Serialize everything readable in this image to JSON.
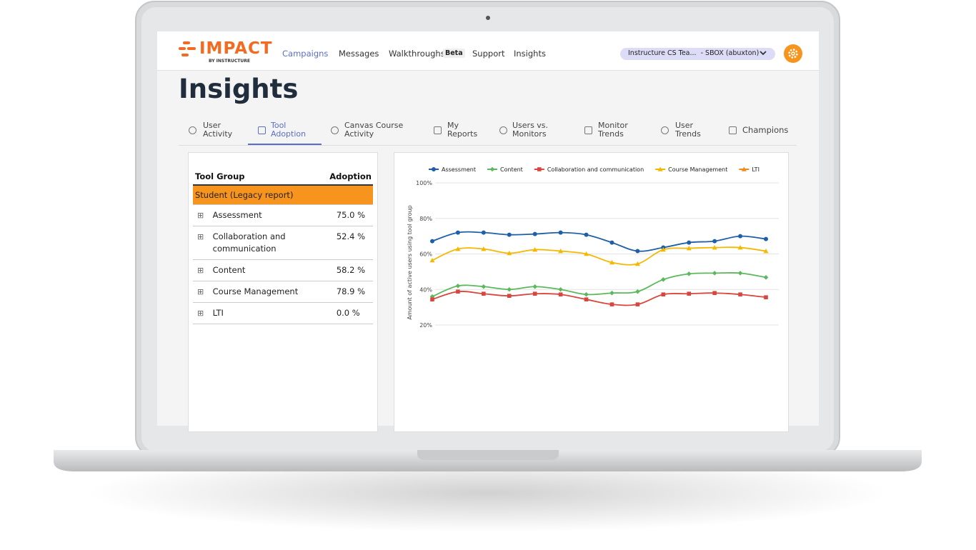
{
  "header": {
    "logo": "IMPACT",
    "logo_sub": "BY INSTRUCTURE",
    "nav": [
      "Campaigns",
      "Messages",
      "Walkthroughs",
      "Support",
      "Insights"
    ],
    "nav_badge": "Beta",
    "account": "Instructure CS Tea...  - SBOX (abuxton)"
  },
  "page_title": "Insights",
  "tabs": [
    "User Activity",
    "Tool Adoption",
    "Canvas Course Activity",
    "My Reports",
    "Users vs. Monitors",
    "Monitor Trends",
    "User Trends",
    "Champions"
  ],
  "table": {
    "columns": [
      "Tool Group",
      "Adoption"
    ],
    "group": "Student (Legacy report)",
    "rows": [
      [
        "Assessment",
        "75.0 %"
      ],
      [
        "Collaboration and communication",
        "52.4 %"
      ],
      [
        "Content",
        "58.2 %"
      ],
      [
        "Course Management",
        "78.9 %"
      ],
      [
        "LTI",
        "0.0 %"
      ]
    ]
  },
  "chart_data": {
    "type": "line",
    "y_label": "Amount of active users using tool group",
    "ylim": [
      20,
      100
    ],
    "yticks": [
      {
        "value": 20,
        "label": "20%"
      },
      {
        "value": 40,
        "label": "40%"
      },
      {
        "value": 60,
        "label": "60%"
      },
      {
        "value": 80,
        "label": "80%"
      },
      {
        "value": 100,
        "label": "100%"
      }
    ],
    "grid": true,
    "legend": "top",
    "series": [
      {
        "name": "Assessment",
        "color": "#1f5fa8",
        "marker": "circle",
        "values": [
          67.2,
          72,
          72,
          70.8,
          71.2,
          72,
          70.8,
          66.4,
          61.6,
          63.6,
          66.4,
          67.2,
          70,
          68.4
        ]
      },
      {
        "name": "Content",
        "color": "#5cb85c",
        "marker": "diamond",
        "values": [
          36,
          42,
          41.6,
          40,
          41.6,
          40,
          37.2,
          38,
          38.8,
          45.6,
          48.8,
          49.2,
          49.2,
          46.8
        ]
      },
      {
        "name": "Collaboration and communication",
        "color": "#d9463e",
        "marker": "square",
        "values": [
          34.4,
          38.8,
          37.6,
          36.4,
          37.6,
          37.2,
          34.4,
          31.6,
          31.6,
          37.2,
          37.6,
          38,
          37.2,
          35.6
        ]
      },
      {
        "name": "Course Management",
        "color": "#f5b800",
        "marker": "triangle",
        "values": [
          56.4,
          62.8,
          62.8,
          60.4,
          62.4,
          61.6,
          60,
          55.2,
          54.4,
          62.4,
          63.2,
          63.6,
          63.6,
          61.6
        ]
      },
      {
        "name": "LTI",
        "color": "#f08a1c",
        "marker": "triangle",
        "values": [
          null,
          null,
          null,
          null,
          null,
          null,
          null,
          null,
          null,
          null,
          null,
          null,
          null,
          null
        ]
      }
    ]
  }
}
